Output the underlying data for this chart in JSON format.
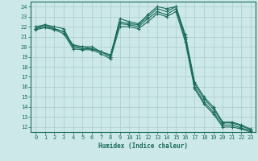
{
  "title": "",
  "xlabel": "Humidex (Indice chaleur)",
  "xlim": [
    -0.5,
    23.5
  ],
  "ylim": [
    11.5,
    24.5
  ],
  "xticks": [
    0,
    1,
    2,
    3,
    4,
    5,
    6,
    7,
    8,
    9,
    10,
    11,
    12,
    13,
    14,
    15,
    16,
    17,
    18,
    19,
    20,
    21,
    22,
    23
  ],
  "yticks": [
    12,
    13,
    14,
    15,
    16,
    17,
    18,
    19,
    20,
    21,
    22,
    23,
    24
  ],
  "bg_color": "#cce8e8",
  "grid_color": "#aacccc",
  "line_color": "#1a6b5a",
  "lines": [
    [
      22.0,
      22.2,
      22.0,
      21.8,
      20.0,
      20.0,
      20.0,
      19.5,
      19.0,
      22.8,
      22.5,
      22.3,
      23.2,
      24.0,
      23.8,
      24.0,
      21.2,
      16.5,
      15.0,
      14.0,
      12.5,
      12.5,
      12.2,
      11.8
    ],
    [
      21.8,
      22.2,
      21.8,
      21.5,
      20.2,
      20.0,
      19.8,
      19.5,
      19.2,
      22.5,
      22.3,
      22.2,
      23.0,
      23.8,
      23.5,
      24.0,
      21.0,
      16.3,
      14.8,
      13.8,
      12.4,
      12.4,
      12.1,
      11.7
    ],
    [
      21.8,
      22.0,
      21.8,
      21.5,
      20.0,
      19.8,
      19.8,
      19.5,
      19.0,
      22.3,
      22.2,
      22.0,
      22.8,
      23.5,
      23.2,
      23.8,
      20.8,
      16.0,
      14.5,
      13.5,
      12.2,
      12.2,
      11.9,
      11.6
    ],
    [
      21.7,
      21.9,
      21.7,
      21.3,
      19.8,
      19.7,
      19.7,
      19.3,
      18.8,
      22.0,
      22.0,
      21.8,
      22.5,
      23.3,
      23.0,
      23.5,
      20.5,
      15.8,
      14.3,
      13.3,
      12.0,
      12.0,
      11.8,
      11.5
    ]
  ]
}
